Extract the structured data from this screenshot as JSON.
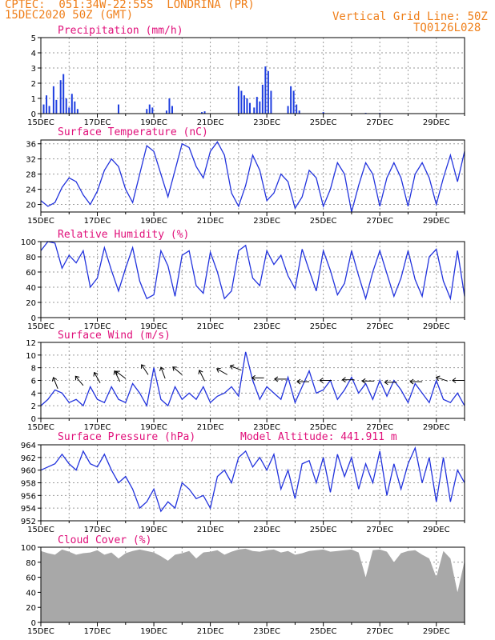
{
  "header": {
    "line1": "CPTEC:  051:34W-22:55S  LONDRINA (PR)",
    "line2": "15DEC2020 50Z (GMT)",
    "grid_note": "Vertical Grid Line: 50Z",
    "code": "TQ0126L028"
  },
  "colors": {
    "orange": "#ef7f1a",
    "title": "#e0107a",
    "line": "#2233dd",
    "bar": "#1f3fe0",
    "cloud": "#a8a8a8"
  },
  "chart_data": [
    {
      "type": "bar",
      "title": "Precipitation  (mm/h)",
      "ylim": [
        0,
        5
      ],
      "yticks": [
        0,
        1,
        2,
        3,
        4,
        5
      ],
      "xlabels": [
        "15DEC",
        "17DEC",
        "19DEC",
        "21DEC",
        "23DEC",
        "25DEC",
        "27DEC",
        "29DEC"
      ],
      "x_days": [
        0,
        15
      ],
      "values": [
        [
          0.1,
          0.6
        ],
        [
          0.2,
          1.2
        ],
        [
          0.3,
          0.5
        ],
        [
          0.45,
          1.8
        ],
        [
          0.55,
          0.9
        ],
        [
          0.7,
          2.2
        ],
        [
          0.8,
          2.6
        ],
        [
          0.9,
          1.0
        ],
        [
          1.0,
          0.4
        ],
        [
          1.1,
          1.3
        ],
        [
          1.2,
          0.8
        ],
        [
          1.3,
          0.3
        ],
        [
          2.75,
          0.6
        ],
        [
          3.75,
          0.3
        ],
        [
          3.85,
          0.6
        ],
        [
          3.95,
          0.4
        ],
        [
          4.45,
          0.2
        ],
        [
          4.55,
          1.0
        ],
        [
          4.65,
          0.5
        ],
        [
          5.7,
          0.1
        ],
        [
          5.8,
          0.15
        ],
        [
          7.0,
          1.8
        ],
        [
          7.1,
          1.5
        ],
        [
          7.2,
          1.2
        ],
        [
          7.3,
          1.0
        ],
        [
          7.4,
          0.7
        ],
        [
          7.55,
          0.4
        ],
        [
          7.65,
          1.1
        ],
        [
          7.75,
          0.8
        ],
        [
          7.85,
          1.9
        ],
        [
          7.95,
          3.1
        ],
        [
          8.05,
          2.8
        ],
        [
          8.15,
          1.5
        ],
        [
          8.75,
          0.5
        ],
        [
          8.85,
          1.8
        ],
        [
          8.95,
          1.5
        ],
        [
          9.05,
          0.6
        ],
        [
          9.15,
          0.2
        ],
        [
          10.0,
          0.1
        ],
        [
          11.5,
          0.05
        ],
        [
          12.0,
          0.05
        ]
      ]
    },
    {
      "type": "line",
      "title": "Surface Temperature (nC)",
      "ylim": [
        18,
        37
      ],
      "yticks": [
        20,
        24,
        28,
        32,
        36
      ],
      "xlabels": [
        "15DEC",
        "17DEC",
        "19DEC",
        "21DEC",
        "23DEC",
        "25DEC",
        "27DEC",
        "29DEC"
      ],
      "x": [
        0,
        0.25,
        0.5,
        0.75,
        1,
        1.25,
        1.5,
        1.75,
        2,
        2.25,
        2.5,
        2.75,
        3,
        3.25,
        3.5,
        3.75,
        4,
        4.25,
        4.5,
        4.75,
        5,
        5.25,
        5.5,
        5.75,
        6,
        6.25,
        6.5,
        6.75,
        7,
        7.25,
        7.5,
        7.75,
        8,
        8.25,
        8.5,
        8.75,
        9,
        9.25,
        9.5,
        9.75,
        10,
        10.25,
        10.5,
        10.75,
        11,
        11.25,
        11.5,
        11.75,
        12,
        12.25,
        12.5,
        12.75,
        13,
        13.25,
        13.5,
        13.75,
        14,
        14.25,
        14.5,
        14.75,
        15
      ],
      "values": [
        21,
        19.5,
        20.5,
        24.5,
        27,
        26,
        22.5,
        20,
        23.5,
        29,
        32,
        30,
        24,
        20.5,
        28,
        35.5,
        34,
        28,
        22,
        29,
        36,
        35,
        30,
        27,
        34,
        36.5,
        33,
        23,
        19.5,
        25,
        33,
        29,
        21,
        23,
        28,
        26,
        19,
        22,
        29,
        27,
        19.5,
        24,
        31,
        28,
        18,
        25,
        31,
        28,
        19.5,
        27,
        31,
        27,
        19.5,
        28,
        31,
        27,
        20,
        27,
        33,
        26,
        34
      ]
    },
    {
      "type": "line",
      "title": "Relative Humidity (%)",
      "ylim": [
        0,
        100
      ],
      "yticks": [
        0,
        20,
        40,
        60,
        80,
        100
      ],
      "xlabels": [
        "15DEC",
        "17DEC",
        "19DEC",
        "21DEC",
        "23DEC",
        "25DEC",
        "27DEC",
        "29DEC"
      ],
      "x": [
        0,
        0.25,
        0.5,
        0.75,
        1,
        1.25,
        1.5,
        1.75,
        2,
        2.25,
        2.5,
        2.75,
        3,
        3.25,
        3.5,
        3.75,
        4,
        4.25,
        4.5,
        4.75,
        5,
        5.25,
        5.5,
        5.75,
        6,
        6.25,
        6.5,
        6.75,
        7,
        7.25,
        7.5,
        7.75,
        8,
        8.25,
        8.5,
        8.75,
        9,
        9.25,
        9.5,
        9.75,
        10,
        10.25,
        10.5,
        10.75,
        11,
        11.25,
        11.5,
        11.75,
        12,
        12.25,
        12.5,
        12.75,
        13,
        13.25,
        13.5,
        13.75,
        14,
        14.25,
        14.5,
        14.75,
        15
      ],
      "values": [
        88,
        100,
        98,
        65,
        82,
        72,
        88,
        40,
        52,
        92,
        62,
        35,
        65,
        92,
        48,
        25,
        30,
        88,
        68,
        28,
        82,
        88,
        42,
        32,
        86,
        60,
        25,
        35,
        88,
        95,
        52,
        42,
        88,
        70,
        82,
        55,
        38,
        90,
        62,
        35,
        88,
        62,
        30,
        45,
        88,
        55,
        25,
        60,
        88,
        58,
        28,
        52,
        88,
        50,
        28,
        80,
        90,
        48,
        25,
        88,
        28
      ]
    },
    {
      "type": "line",
      "title": "Surface Wind (m/s)",
      "ylim": [
        0,
        12
      ],
      "yticks": [
        0,
        2,
        4,
        6,
        8,
        10,
        12
      ],
      "xlabels": [
        "15DEC",
        "17DEC",
        "19DEC",
        "21DEC",
        "23DEC",
        "25DEC",
        "27DEC",
        "29DEC"
      ],
      "x": [
        0,
        0.25,
        0.5,
        0.75,
        1,
        1.25,
        1.5,
        1.75,
        2,
        2.25,
        2.5,
        2.75,
        3,
        3.25,
        3.5,
        3.75,
        4,
        4.25,
        4.5,
        4.75,
        5,
        5.25,
        5.5,
        5.75,
        6,
        6.25,
        6.5,
        6.75,
        7,
        7.25,
        7.5,
        7.75,
        8,
        8.25,
        8.5,
        8.75,
        9,
        9.25,
        9.5,
        9.75,
        10,
        10.25,
        10.5,
        10.75,
        11,
        11.25,
        11.5,
        11.75,
        12,
        12.25,
        12.5,
        12.75,
        13,
        13.25,
        13.5,
        13.75,
        14,
        14.25,
        14.5,
        14.75,
        15
      ],
      "values": [
        2,
        3,
        4.5,
        4,
        2.5,
        3,
        2,
        5,
        3,
        2.5,
        5,
        3,
        2.5,
        5.5,
        4,
        2,
        8,
        3,
        2,
        5,
        3,
        4,
        3,
        5,
        2.5,
        3.5,
        4,
        5,
        3.5,
        10.5,
        6,
        3,
        5,
        4,
        3,
        6.5,
        2.5,
        5,
        7.5,
        4,
        4.5,
        6,
        3,
        4.5,
        6.5,
        4,
        5.5,
        3,
        6,
        3.5,
        6,
        4.5,
        2.5,
        5.5,
        4,
        2.5,
        6,
        3,
        2.5,
        4,
        2
      ],
      "barbs": [
        [
          0.6,
          4.7,
          -0.4,
          -1
        ],
        [
          1.5,
          5.2,
          -0.5,
          -0.6
        ],
        [
          2.1,
          5.6,
          -0.4,
          -0.7
        ],
        [
          2.8,
          5.8,
          -0.3,
          -0.6
        ],
        [
          3.0,
          6.3,
          -0.4,
          -0.3
        ],
        [
          3.8,
          6.9,
          -0.4,
          -0.6
        ],
        [
          4.4,
          6.3,
          -0.3,
          -0.8
        ],
        [
          5.0,
          6.9,
          -0.6,
          -0.5
        ],
        [
          5.8,
          5.9,
          -0.4,
          -0.8
        ],
        [
          6.6,
          6.9,
          -0.7,
          -0.4
        ],
        [
          7.1,
          7.6,
          -1,
          -0.4
        ],
        [
          7.9,
          6.4,
          -1,
          0
        ],
        [
          8.7,
          6.2,
          -1,
          0
        ],
        [
          9.5,
          5.8,
          -1,
          0
        ],
        [
          10.3,
          6.0,
          -1,
          0
        ],
        [
          11.1,
          6.1,
          -1,
          0
        ],
        [
          11.8,
          5.9,
          -1,
          0
        ],
        [
          12.6,
          5.7,
          -1,
          0
        ],
        [
          13.5,
          5.8,
          -0.5,
          0
        ],
        [
          14.4,
          5.9,
          -0.6,
          -0.2
        ],
        [
          15.0,
          6.0,
          -0.3,
          0
        ]
      ]
    },
    {
      "type": "line",
      "title": "Surface Pressure (hPa)",
      "subtitle": "Model Altitude: 441.911  m",
      "ylim": [
        952,
        964
      ],
      "yticks": [
        952,
        954,
        956,
        958,
        960,
        962,
        964
      ],
      "xlabels": [
        "15DEC",
        "17DEC",
        "19DEC",
        "21DEC",
        "23DEC",
        "25DEC",
        "27DEC",
        "29DEC"
      ],
      "x": [
        0,
        0.25,
        0.5,
        0.75,
        1,
        1.25,
        1.5,
        1.75,
        2,
        2.25,
        2.5,
        2.75,
        3,
        3.25,
        3.5,
        3.75,
        4,
        4.25,
        4.5,
        4.75,
        5,
        5.25,
        5.5,
        5.75,
        6,
        6.25,
        6.5,
        6.75,
        7,
        7.25,
        7.5,
        7.75,
        8,
        8.25,
        8.5,
        8.75,
        9,
        9.25,
        9.5,
        9.75,
        10,
        10.25,
        10.5,
        10.75,
        11,
        11.25,
        11.5,
        11.75,
        12,
        12.25,
        12.5,
        12.75,
        13,
        13.25,
        13.5,
        13.75,
        14,
        14.25,
        14.5,
        14.75,
        15
      ],
      "values": [
        960,
        960.5,
        961,
        962.5,
        961,
        960,
        963,
        961,
        960.5,
        962.5,
        960,
        958,
        959,
        957,
        954,
        955,
        957,
        953.5,
        955,
        954,
        958,
        957,
        955.5,
        956,
        954,
        959,
        960,
        958,
        962,
        963,
        960.5,
        962,
        960,
        962.5,
        957,
        960,
        955.5,
        961,
        961.5,
        958,
        962,
        956.5,
        962.5,
        959,
        962,
        957,
        961,
        958,
        963,
        956,
        961,
        957,
        961,
        963.5,
        958,
        962,
        955,
        962,
        955,
        960,
        958
      ]
    },
    {
      "type": "bar",
      "title": "Cloud Cover (%)",
      "ylim": [
        0,
        100
      ],
      "yticks": [
        0,
        20,
        40,
        60,
        80,
        100
      ],
      "xlabels": [
        "15DEC",
        "17DEC",
        "19DEC",
        "21DEC",
        "23DEC",
        "25DEC",
        "27DEC",
        "29DEC"
      ],
      "x": [
        0,
        0.25,
        0.5,
        0.75,
        1,
        1.25,
        1.5,
        1.75,
        2,
        2.25,
        2.5,
        2.75,
        3,
        3.25,
        3.5,
        3.75,
        4,
        4.25,
        4.5,
        4.75,
        5,
        5.25,
        5.5,
        5.75,
        6,
        6.25,
        6.5,
        6.75,
        7,
        7.25,
        7.5,
        7.75,
        8,
        8.25,
        8.5,
        8.75,
        9,
        9.25,
        9.5,
        9.75,
        10,
        10.25,
        10.5,
        10.75,
        11,
        11.25,
        11.5,
        11.75,
        12,
        12.25,
        12.5,
        12.75,
        13,
        13.25,
        13.5,
        13.75,
        14,
        14.25,
        14.5,
        14.75,
        15
      ],
      "values": [
        95,
        92,
        90,
        97,
        94,
        90,
        92,
        93,
        96,
        90,
        93,
        85,
        92,
        95,
        97,
        95,
        93,
        88,
        82,
        90,
        92,
        95,
        85,
        93,
        94,
        96,
        90,
        94,
        97,
        98,
        95,
        94,
        96,
        97,
        93,
        95,
        90,
        92,
        95,
        96,
        97,
        94,
        95,
        96,
        97,
        93,
        60,
        96,
        97,
        94,
        80,
        92,
        95,
        96,
        90,
        85,
        60,
        95,
        85,
        40,
        82
      ]
    }
  ]
}
